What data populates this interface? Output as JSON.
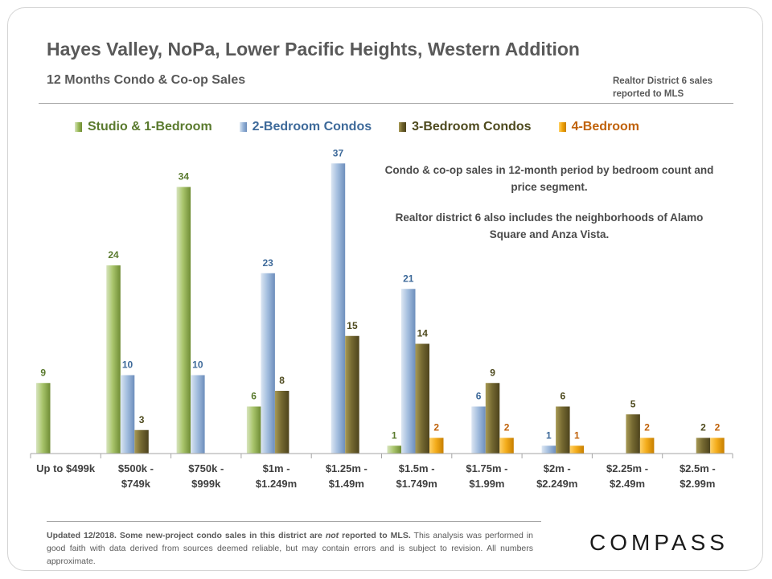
{
  "header": {
    "title": "Hayes Valley, NoPa, Lower Pacific Heights, Western Addition",
    "subtitle": "12 Months Condo & Co-op Sales",
    "source_line1": "Realtor District 6 sales",
    "source_line2": "reported to MLS"
  },
  "annotation": {
    "line1": "Condo & co-op sales in 12-month period by bedroom count and price segment.",
    "line2": "Realtor district 6 also includes the neighborhoods of Alamo Square and Anza Vista."
  },
  "footnote": {
    "bold_part1": "Updated 12/2018. Some new-project condo sales in this district are ",
    "bold_italic": "not",
    "bold_part2": " reported to MLS.",
    "rest": " This analysis was performed in good faith with data derived from sources deemed reliable, but may contain errors and is subject to revision. All numbers approximate."
  },
  "brand": {
    "logo_text": "COMPASS"
  },
  "colors": {
    "studio": "#9bbb59",
    "two_bed": "#95b3d7",
    "three_bed": "#6b5f2a",
    "four_bed": "#f0a30a",
    "studio_label": "#5a7a2e",
    "two_bed_label": "#3e6a9a",
    "three_bed_label": "#4e4a1e",
    "four_bed_label": "#c0620a"
  },
  "chart_data": {
    "type": "bar",
    "title": "Hayes Valley, NoPa, Lower Pacific Heights, Western Addition",
    "xlabel": "",
    "ylabel": "",
    "ylim": [
      0,
      40
    ],
    "grid": false,
    "legend_position": "top",
    "categories": [
      [
        "Up to $499k"
      ],
      [
        "$500k -",
        "$749k"
      ],
      [
        "$750k -",
        "$999k"
      ],
      [
        "$1m -",
        "$1.249m"
      ],
      [
        "$1.25m -",
        "$1.49m"
      ],
      [
        "$1.5m -",
        "$1.749m"
      ],
      [
        "$1.75m -",
        "$1.99m"
      ],
      [
        "$2m -",
        "$2.249m"
      ],
      [
        "$2.25m -",
        "$2.49m"
      ],
      [
        "$2.5m -",
        "$2.99m"
      ]
    ],
    "series": [
      {
        "key": "studio",
        "name": "Studio & 1-Bedroom",
        "values": [
          9,
          24,
          34,
          6,
          null,
          1,
          null,
          null,
          null,
          null
        ]
      },
      {
        "key": "two_bed",
        "name": "2-Bedroom Condos",
        "values": [
          null,
          10,
          10,
          23,
          37,
          21,
          6,
          1,
          null,
          null
        ]
      },
      {
        "key": "three_bed",
        "name": "3-Bedroom Condos",
        "values": [
          null,
          3,
          null,
          8,
          15,
          14,
          9,
          6,
          5,
          2
        ]
      },
      {
        "key": "four_bed",
        "name": "4-Bedroom",
        "values": [
          null,
          null,
          null,
          null,
          null,
          2,
          2,
          1,
          2,
          2
        ]
      }
    ]
  }
}
